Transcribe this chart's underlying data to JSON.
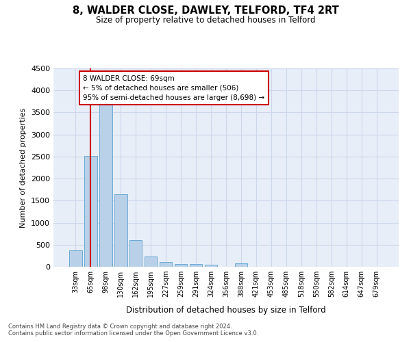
{
  "title": "8, WALDER CLOSE, DAWLEY, TELFORD, TF4 2RT",
  "subtitle": "Size of property relative to detached houses in Telford",
  "xlabel": "Distribution of detached houses by size in Telford",
  "ylabel": "Number of detached properties",
  "footnote1": "Contains HM Land Registry data © Crown copyright and database right 2024.",
  "footnote2": "Contains public sector information licensed under the Open Government Licence v3.0.",
  "categories": [
    "33sqm",
    "65sqm",
    "98sqm",
    "130sqm",
    "162sqm",
    "195sqm",
    "227sqm",
    "259sqm",
    "291sqm",
    "324sqm",
    "356sqm",
    "388sqm",
    "421sqm",
    "453sqm",
    "485sqm",
    "518sqm",
    "550sqm",
    "582sqm",
    "614sqm",
    "647sqm",
    "679sqm"
  ],
  "values": [
    370,
    2520,
    3730,
    1640,
    600,
    240,
    110,
    65,
    55,
    50,
    0,
    75,
    0,
    0,
    0,
    0,
    0,
    0,
    0,
    0,
    0
  ],
  "bar_color": "#b8d0e8",
  "bar_edge_color": "#6aaad4",
  "ylim": [
    0,
    4500
  ],
  "yticks": [
    0,
    500,
    1000,
    1500,
    2000,
    2500,
    3000,
    3500,
    4000,
    4500
  ],
  "property_line_x": 1,
  "annotation_title": "8 WALDER CLOSE: 69sqm",
  "annotation_line1": "← 5% of detached houses are smaller (506)",
  "annotation_line2": "95% of semi-detached houses are larger (8,698) →",
  "annotation_box_color": "#ffffff",
  "annotation_box_edge": "#cc0000",
  "vline_color": "#cc0000",
  "grid_color": "#ccd8ea",
  "background_color": "#e8eef8"
}
